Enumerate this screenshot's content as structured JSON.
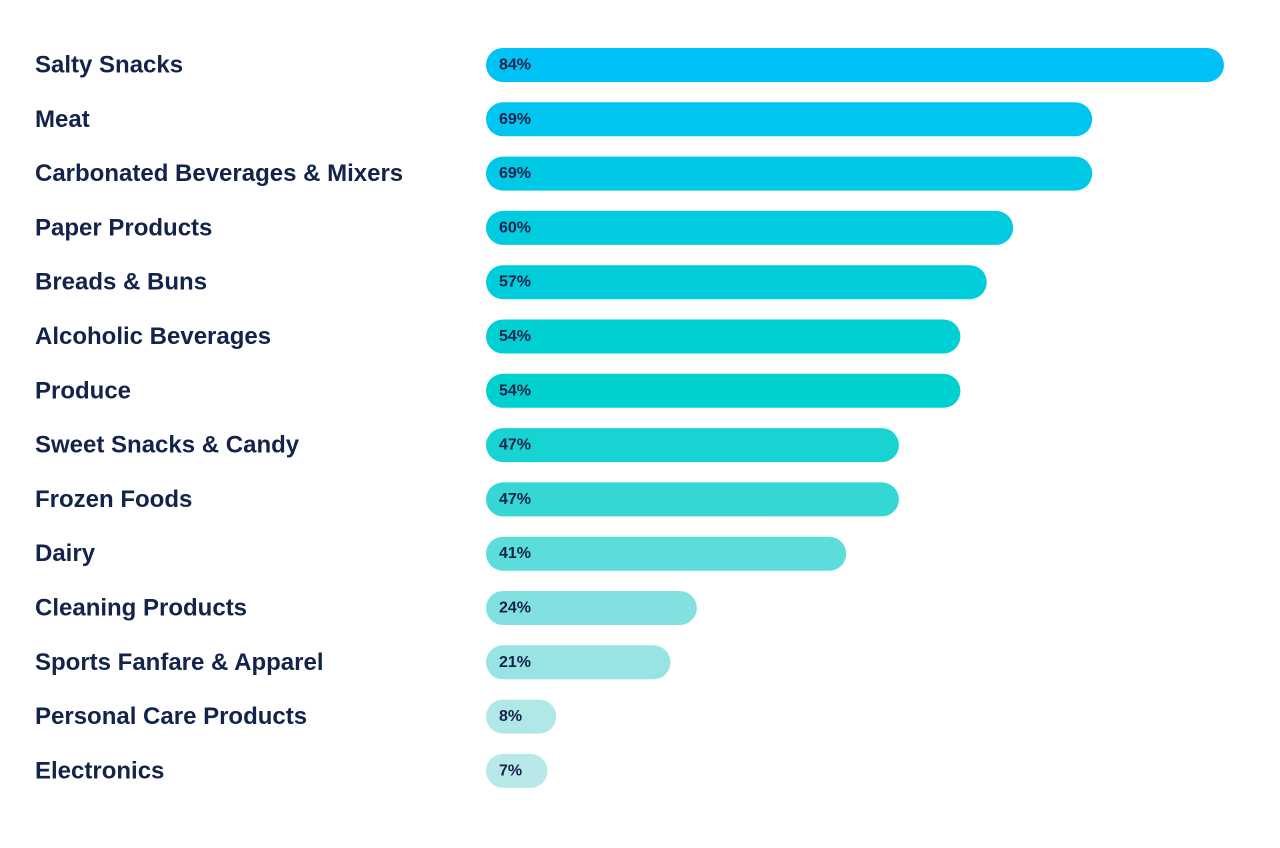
{
  "chart_data": {
    "type": "bar",
    "orientation": "horizontal",
    "categories": [
      "Salty Snacks",
      "Meat",
      "Carbonated Beverages & Mixers",
      "Paper Products",
      "Breads & Buns",
      "Alcoholic Beverages",
      "Produce",
      "Sweet Snacks & Candy",
      "Frozen Foods",
      "Dairy",
      "Cleaning Products",
      "Sports Fanfare & Apparel",
      "Personal Care Products",
      "Electronics"
    ],
    "values": [
      84,
      69,
      69,
      60,
      57,
      54,
      54,
      47,
      47,
      41,
      24,
      21,
      8,
      7
    ],
    "value_labels": [
      "84%",
      "69%",
      "69%",
      "60%",
      "57%",
      "54%",
      "54%",
      "47%",
      "47%",
      "41%",
      "24%",
      "21%",
      "8%",
      "7%"
    ],
    "bar_colors": [
      "#00c2f7",
      "#00c5f0",
      "#00c9e6",
      "#00cbdf",
      "#00cdd9",
      "#00d0d4",
      "#00d1cf",
      "#17d3d2",
      "#35d7d5",
      "#5cdcda",
      "#82e1e0",
      "#98e3e3",
      "#b0e7e7",
      "#b8e8e8"
    ],
    "label_color": "#13234a",
    "title": "",
    "xlabel": "",
    "ylabel": "",
    "grid": false,
    "legend": "none"
  }
}
